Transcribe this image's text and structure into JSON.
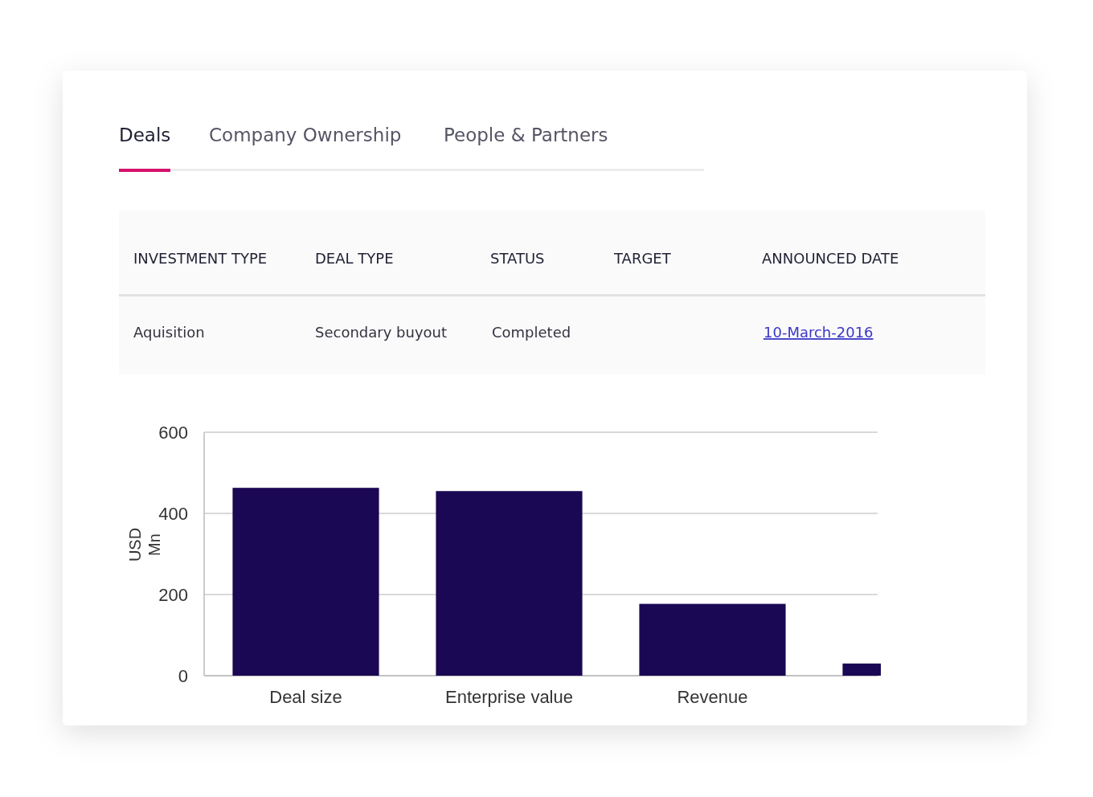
{
  "chart_data": {
    "type": "bar",
    "ylabel": "USD Mn",
    "categories": [
      "Deal size",
      "Enterprise value",
      "Revenue",
      null
    ],
    "values": [
      463,
      455,
      177,
      30
    ],
    "color": "#1b0854",
    "ylim": [
      0,
      600
    ],
    "yticks": [
      0,
      200,
      400,
      600
    ],
    "grid": "y",
    "annotations": [
      "Deals",
      "Company Ownership",
      "People & Partners",
      "INVESTMENT TYPE",
      "DEAL TYPE",
      "STATUS",
      "TARGET",
      "ANNOUNCED DATE",
      "Aquisition",
      "Secondary buyout",
      "Completed",
      "10-March-2016"
    ]
  }
}
